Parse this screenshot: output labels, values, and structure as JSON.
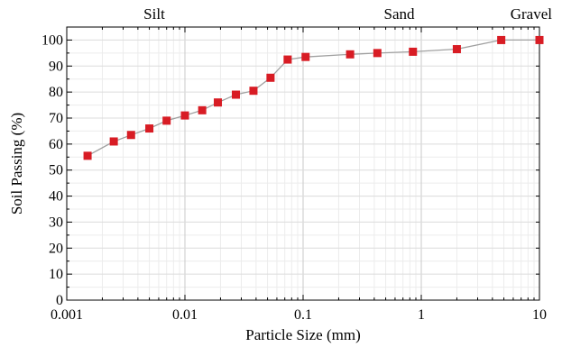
{
  "chart_data": {
    "type": "scatter",
    "title": "",
    "xlabel": "Particle Size (mm)",
    "ylabel": "Soil Passing (%)",
    "x_scale": "log",
    "xlim": [
      0.001,
      10
    ],
    "ylim": [
      0,
      105
    ],
    "grid": true,
    "x_ticks": [
      0.001,
      0.01,
      0.1,
      1,
      10
    ],
    "x_tick_labels": [
      "0.001",
      "0.01",
      "0.1",
      "1",
      "10"
    ],
    "y_ticks": [
      0,
      10,
      20,
      30,
      40,
      50,
      60,
      70,
      80,
      90,
      100
    ],
    "y_tick_labels": [
      "0",
      "10",
      "20",
      "30",
      "40",
      "50",
      "60",
      "70",
      "80",
      "90",
      "100"
    ],
    "region_labels": [
      {
        "text": "Silt",
        "x": 0.0055
      },
      {
        "text": "Sand",
        "x": 0.65
      },
      {
        "text": "Gravel",
        "x": 10
      }
    ],
    "series": [
      {
        "x": [
          0.0015,
          0.0025,
          0.0035,
          0.005,
          0.007,
          0.01,
          0.014,
          0.019,
          0.027,
          0.038,
          0.053,
          0.074,
          0.105,
          0.25,
          0.425,
          0.85,
          2.0,
          4.75,
          10.0
        ],
        "y": [
          55.5,
          61,
          63.5,
          66,
          69,
          71,
          73,
          76,
          79,
          80.5,
          85.5,
          92.5,
          93.5,
          94.5,
          95,
          95.5,
          96.5,
          100,
          100
        ],
        "marker_color": "#d81c24",
        "line_color": "#a0a0a0"
      }
    ]
  }
}
